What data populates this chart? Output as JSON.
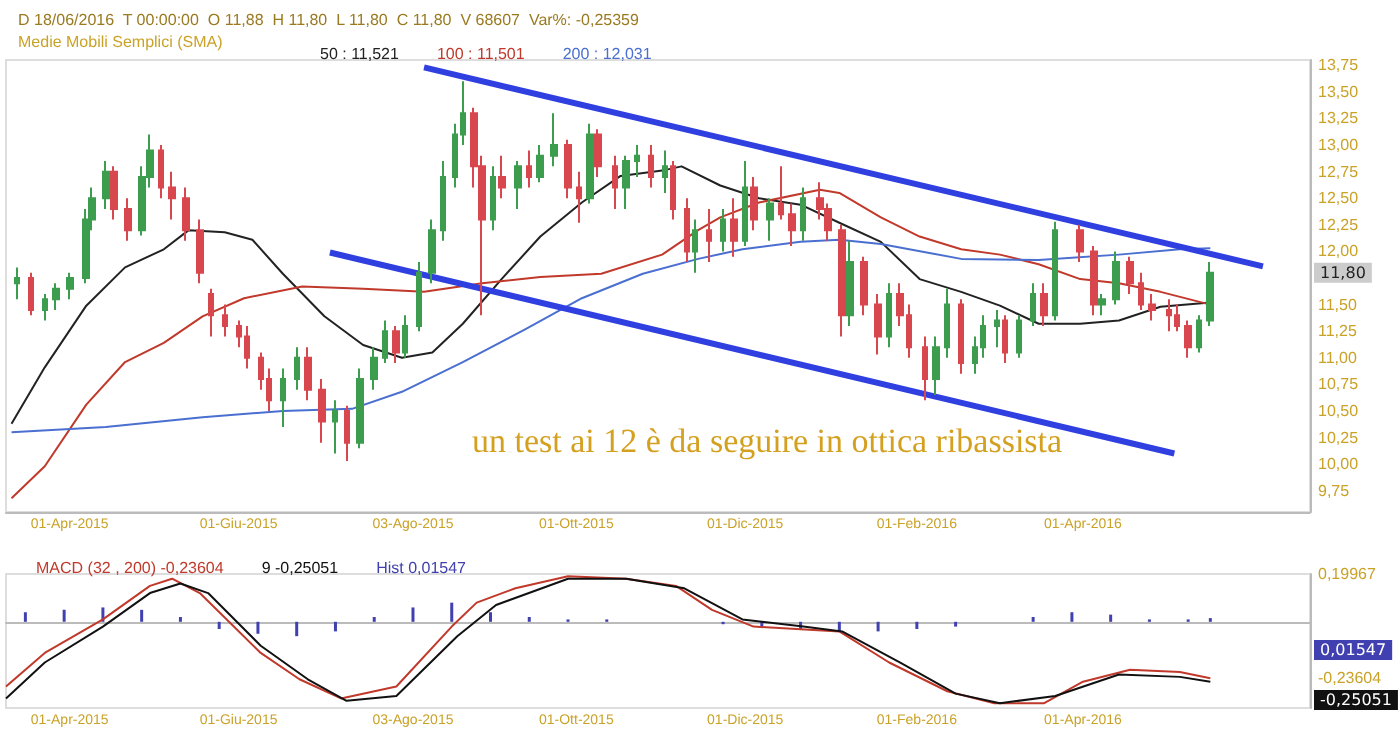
{
  "chart_data": [
    {
      "type": "candlestick",
      "title": "D 18/06/2016  T 00:00:00  O 11,88  H 11,80  L 11,80  C 11,80  V 68607  Var%: -0,25359",
      "subtitle": "Medie Mobili Semplici (SMA)",
      "annotations": [
        "un test ai 12 è da seguire in ottica ribassista",
        "11,80"
      ],
      "x": [
        "2015-03-13",
        "2015-03-18",
        "2015-03-23",
        "2015-03-27",
        "2015-04-01",
        "2015-04-07",
        "2015-04-09",
        "2015-04-14",
        "2015-04-17",
        "2015-04-22",
        "2015-04-27",
        "2015-04-30",
        "2015-05-04",
        "2015-05-08",
        "2015-05-13",
        "2015-05-18",
        "2015-05-22",
        "2015-05-27",
        "2015-06-01",
        "2015-06-04",
        "2015-06-09",
        "2015-06-12",
        "2015-06-17",
        "2015-06-22",
        "2015-06-26",
        "2015-07-01",
        "2015-07-06",
        "2015-07-10",
        "2015-07-15",
        "2015-07-20",
        "2015-07-24",
        "2015-07-28",
        "2015-07-31",
        "2015-08-05",
        "2015-08-10",
        "2015-08-14",
        "2015-08-18",
        "2015-08-21",
        "2015-08-25",
        "2015-08-28",
        "2015-09-01",
        "2015-09-04",
        "2015-09-10",
        "2015-09-14",
        "2015-09-18",
        "2015-09-23",
        "2015-09-28",
        "2015-10-02",
        "2015-10-06",
        "2015-10-09",
        "2015-10-15",
        "2015-10-19",
        "2015-10-23",
        "2015-10-28",
        "2015-11-02",
        "2015-11-05",
        "2015-11-10",
        "2015-11-13",
        "2015-11-18",
        "2015-11-23",
        "2015-11-27",
        "2015-12-01",
        "2015-12-04",
        "2015-12-10",
        "2015-12-14",
        "2015-12-18",
        "2015-12-22",
        "2015-12-28",
        "2015-12-31",
        "2016-01-05",
        "2016-01-08",
        "2016-01-13",
        "2016-01-18",
        "2016-01-22",
        "2016-01-26",
        "2016-01-29",
        "2016-02-04",
        "2016-02-08",
        "2016-02-12",
        "2016-02-17",
        "2016-02-22",
        "2016-02-25",
        "2016-03-01",
        "2016-03-04",
        "2016-03-09",
        "2016-03-14",
        "2016-03-18",
        "2016-03-22",
        "2016-03-31",
        "2016-04-05",
        "2016-04-08",
        "2016-04-13",
        "2016-04-18",
        "2016-04-22",
        "2016-04-26",
        "2016-05-02",
        "2016-05-05",
        "2016-05-09",
        "2016-05-13",
        "2016-05-17"
      ],
      "ohlc": [
        [
          11.7,
          11.85,
          11.55,
          11.75
        ],
        [
          11.75,
          11.8,
          11.4,
          11.45
        ],
        [
          11.45,
          11.6,
          11.35,
          11.55
        ],
        [
          11.55,
          11.7,
          11.45,
          11.65
        ],
        [
          11.65,
          11.8,
          11.55,
          11.75
        ],
        [
          11.75,
          12.4,
          11.7,
          12.3
        ],
        [
          12.3,
          12.6,
          12.2,
          12.5
        ],
        [
          12.5,
          12.85,
          12.4,
          12.75
        ],
        [
          12.75,
          12.8,
          12.3,
          12.4
        ],
        [
          12.4,
          12.5,
          12.1,
          12.2
        ],
        [
          12.2,
          12.8,
          12.15,
          12.7
        ],
        [
          12.7,
          13.1,
          12.6,
          12.95
        ],
        [
          12.95,
          13.0,
          12.5,
          12.6
        ],
        [
          12.6,
          12.75,
          12.3,
          12.5
        ],
        [
          12.5,
          12.6,
          12.1,
          12.2
        ],
        [
          12.2,
          12.3,
          11.7,
          11.8
        ],
        [
          11.6,
          11.65,
          11.2,
          11.4
        ],
        [
          11.4,
          11.5,
          11.2,
          11.3
        ],
        [
          11.3,
          11.35,
          11.1,
          11.2
        ],
        [
          11.2,
          11.3,
          10.9,
          11.0
        ],
        [
          11.0,
          11.05,
          10.7,
          10.8
        ],
        [
          10.8,
          10.9,
          10.5,
          10.6
        ],
        [
          10.6,
          10.9,
          10.35,
          10.8
        ],
        [
          10.8,
          11.1,
          10.7,
          11.0
        ],
        [
          11.0,
          11.1,
          10.6,
          10.7
        ],
        [
          10.7,
          10.8,
          10.2,
          10.4
        ],
        [
          10.4,
          10.6,
          10.1,
          10.5
        ],
        [
          10.5,
          10.55,
          10.03,
          10.2
        ],
        [
          10.2,
          10.9,
          10.15,
          10.8
        ],
        [
          10.8,
          11.1,
          10.7,
          11.0
        ],
        [
          11.0,
          11.35,
          10.95,
          11.25
        ],
        [
          11.25,
          11.3,
          10.95,
          11.05
        ],
        [
          11.05,
          11.4,
          11.0,
          11.3
        ],
        [
          11.3,
          11.9,
          11.25,
          11.8
        ],
        [
          11.8,
          12.3,
          11.7,
          12.2
        ],
        [
          12.2,
          12.85,
          12.1,
          12.7
        ],
        [
          12.7,
          13.2,
          12.6,
          13.1
        ],
        [
          13.1,
          13.6,
          13.0,
          13.3
        ],
        [
          13.3,
          13.35,
          12.6,
          12.8
        ],
        [
          12.8,
          12.9,
          11.4,
          12.3
        ],
        [
          12.3,
          12.8,
          12.2,
          12.7
        ],
        [
          12.7,
          12.9,
          12.5,
          12.6
        ],
        [
          12.6,
          12.85,
          12.4,
          12.8
        ],
        [
          12.8,
          12.95,
          12.6,
          12.7
        ],
        [
          12.7,
          13.0,
          12.65,
          12.9
        ],
        [
          12.9,
          13.3,
          12.8,
          13.0
        ],
        [
          13.0,
          13.05,
          12.5,
          12.6
        ],
        [
          12.6,
          12.75,
          12.27,
          12.5
        ],
        [
          12.5,
          13.2,
          12.45,
          13.1
        ],
        [
          13.1,
          13.15,
          12.7,
          12.8
        ],
        [
          12.8,
          12.9,
          12.4,
          12.6
        ],
        [
          12.6,
          12.9,
          12.4,
          12.85
        ],
        [
          12.85,
          13.0,
          12.7,
          12.9
        ],
        [
          12.9,
          13.0,
          12.6,
          12.7
        ],
        [
          12.7,
          12.95,
          12.55,
          12.8
        ],
        [
          12.8,
          12.85,
          12.3,
          12.4
        ],
        [
          12.4,
          12.5,
          11.9,
          12.0
        ],
        [
          12.0,
          12.3,
          11.8,
          12.2
        ],
        [
          12.2,
          12.4,
          11.9,
          12.1
        ],
        [
          12.1,
          12.4,
          12.0,
          12.3
        ],
        [
          12.3,
          12.5,
          11.95,
          12.1
        ],
        [
          12.1,
          12.85,
          12.05,
          12.6
        ],
        [
          12.6,
          12.7,
          12.2,
          12.3
        ],
        [
          12.3,
          12.5,
          12.1,
          12.45
        ],
        [
          12.45,
          12.8,
          12.3,
          12.35
        ],
        [
          12.35,
          12.45,
          12.05,
          12.2
        ],
        [
          12.2,
          12.6,
          12.1,
          12.5
        ],
        [
          12.5,
          12.65,
          12.3,
          12.4
        ],
        [
          12.4,
          12.45,
          12.1,
          12.2
        ],
        [
          12.2,
          12.25,
          11.2,
          11.4
        ],
        [
          11.4,
          12.1,
          11.3,
          11.9
        ],
        [
          11.9,
          11.95,
          11.4,
          11.5
        ],
        [
          11.5,
          11.6,
          11.03,
          11.2
        ],
        [
          11.2,
          11.7,
          11.1,
          11.6
        ],
        [
          11.6,
          11.7,
          11.3,
          11.4
        ],
        [
          11.4,
          11.5,
          11.0,
          11.1
        ],
        [
          11.1,
          11.2,
          10.6,
          10.8
        ],
        [
          10.8,
          11.2,
          10.65,
          11.1
        ],
        [
          11.1,
          11.65,
          11.0,
          11.5
        ],
        [
          11.5,
          11.55,
          10.85,
          10.95
        ],
        [
          10.95,
          11.2,
          10.85,
          11.1
        ],
        [
          11.1,
          11.4,
          11.0,
          11.3
        ],
        [
          11.3,
          11.45,
          11.1,
          11.35
        ],
        [
          11.35,
          11.4,
          10.95,
          11.05
        ],
        [
          11.05,
          11.4,
          11.0,
          11.35
        ],
        [
          11.35,
          11.7,
          11.3,
          11.6
        ],
        [
          11.6,
          11.7,
          11.3,
          11.4
        ],
        [
          11.4,
          12.28,
          11.35,
          12.2
        ],
        [
          12.2,
          12.25,
          11.9,
          12.0
        ],
        [
          12.0,
          12.05,
          11.4,
          11.5
        ],
        [
          11.5,
          11.6,
          11.4,
          11.55
        ],
        [
          11.55,
          12.0,
          11.5,
          11.9
        ],
        [
          11.9,
          11.95,
          11.6,
          11.7
        ],
        [
          11.7,
          11.8,
          11.45,
          11.5
        ],
        [
          11.5,
          11.6,
          11.35,
          11.45
        ],
        [
          11.45,
          11.55,
          11.25,
          11.4
        ],
        [
          11.4,
          11.5,
          11.25,
          11.3
        ],
        [
          11.3,
          11.35,
          11.0,
          11.1
        ],
        [
          11.1,
          11.4,
          11.05,
          11.35
        ],
        [
          11.35,
          11.9,
          11.3,
          11.8
        ]
      ],
      "series": [
        {
          "type": "line",
          "name": "50 : 11,521",
          "color": "#222222",
          "x": [
            "2015-03-11",
            "2015-03-23",
            "2015-04-07",
            "2015-04-21",
            "2015-05-05",
            "2015-05-14",
            "2015-05-27",
            "2015-06-06",
            "2015-06-17",
            "2015-07-02",
            "2015-07-16",
            "2015-07-30",
            "2015-08-10",
            "2015-08-21",
            "2015-09-04",
            "2015-09-18",
            "2015-10-03",
            "2015-10-17",
            "2015-11-01",
            "2015-11-08",
            "2015-11-22",
            "2015-12-06",
            "2015-12-21",
            "2016-01-04",
            "2016-01-19",
            "2016-02-02",
            "2016-02-17",
            "2016-03-02",
            "2016-03-16",
            "2016-03-31",
            "2016-04-14",
            "2016-04-29",
            "2016-05-17"
          ],
          "values": [
            10.38,
            10.91,
            11.49,
            11.85,
            12.02,
            12.2,
            12.18,
            12.11,
            11.79,
            11.39,
            11.12,
            11.0,
            11.05,
            11.32,
            11.74,
            12.14,
            12.46,
            12.71,
            12.76,
            12.8,
            12.62,
            12.5,
            12.44,
            12.27,
            12.09,
            11.74,
            11.62,
            11.49,
            11.32,
            11.32,
            11.35,
            11.48,
            11.52
          ]
        },
        {
          "type": "line",
          "name": "100 : 11,501",
          "color": "#c0392b",
          "x": [
            "2015-03-11",
            "2015-03-23",
            "2015-04-07",
            "2015-04-21",
            "2015-05-05",
            "2015-05-19",
            "2015-06-03",
            "2015-06-24",
            "2015-07-16",
            "2015-08-07",
            "2015-08-28",
            "2015-09-18",
            "2015-10-10",
            "2015-11-01",
            "2015-11-14",
            "2015-11-22",
            "2015-12-06",
            "2015-12-28",
            "2016-01-04",
            "2016-01-19",
            "2016-02-02",
            "2016-02-17",
            "2016-03-02",
            "2016-03-16",
            "2016-03-31",
            "2016-04-14",
            "2016-04-29",
            "2016-05-17"
          ],
          "values": [
            9.68,
            9.98,
            10.56,
            10.96,
            11.14,
            11.39,
            11.56,
            11.67,
            11.65,
            11.62,
            11.7,
            11.76,
            11.79,
            11.97,
            12.2,
            12.32,
            12.46,
            12.58,
            12.55,
            12.32,
            12.14,
            12.02,
            11.97,
            11.88,
            11.74,
            11.7,
            11.62,
            11.5
          ]
        },
        {
          "type": "line",
          "name": "200 : 12,031",
          "color": "#4a6fd0",
          "x": [
            "2015-03-11",
            "2015-04-14",
            "2015-05-19",
            "2015-06-17",
            "2015-07-12",
            "2015-07-30",
            "2015-08-21",
            "2015-09-12",
            "2015-10-03",
            "2015-10-25",
            "2015-11-14",
            "2015-11-30",
            "2015-12-21",
            "2016-01-04",
            "2016-01-19",
            "2016-02-17",
            "2016-03-16",
            "2016-04-14",
            "2016-05-06",
            "2016-05-17"
          ],
          "values": [
            10.3,
            10.35,
            10.44,
            10.5,
            10.52,
            10.68,
            10.96,
            11.26,
            11.56,
            11.79,
            11.93,
            12.02,
            12.09,
            12.11,
            12.07,
            11.93,
            11.92,
            11.97,
            12.02,
            12.03
          ]
        },
        {
          "type": "line",
          "color": "#2f3fe0",
          "x": [
            "2015-08-07",
            "2016-06-05"
          ],
          "values": [
            13.73,
            11.86
          ]
        },
        {
          "type": "line",
          "color": "#2f3fe0",
          "x": [
            "2015-07-04",
            "2016-05-04"
          ],
          "values": [
            11.99,
            10.1
          ]
        }
      ],
      "xlim": [
        "2015-03-09",
        "2016-06-22"
      ],
      "xticks": [
        {
          "value": "2015-04-01",
          "label": "01-Apr-2015"
        },
        {
          "value": "2015-06-01",
          "label": "01-Giu-2015"
        },
        {
          "value": "2015-08-03",
          "label": "03-Ago-2015"
        },
        {
          "value": "2015-10-01",
          "label": "01-Ott-2015"
        },
        {
          "value": "2015-12-01",
          "label": "01-Dic-2015"
        },
        {
          "value": "2016-02-01",
          "label": "01-Feb-2016"
        },
        {
          "value": "2016-04-01",
          "label": "01-Apr-2016"
        }
      ],
      "ylim": [
        9.55,
        13.8
      ],
      "yticks": [
        {
          "value": 9.75,
          "label": "9,75"
        },
        {
          "value": 10,
          "label": "10,00"
        },
        {
          "value": 10.25,
          "label": "10,25"
        },
        {
          "value": 10.5,
          "label": "10,50"
        },
        {
          "value": 10.75,
          "label": "10,75"
        },
        {
          "value": 11,
          "label": "11,00"
        },
        {
          "value": 11.25,
          "label": "11,25"
        },
        {
          "value": 11.5,
          "label": "11,50"
        },
        {
          "value": 12,
          "label": "12,00"
        },
        {
          "value": 12.25,
          "label": "12,25"
        },
        {
          "value": 12.5,
          "label": "12,50"
        },
        {
          "value": 12.75,
          "label": "12,75"
        },
        {
          "value": 13,
          "label": "13,00"
        },
        {
          "value": 13.25,
          "label": "13,25"
        },
        {
          "value": 13.5,
          "label": "13,50"
        },
        {
          "value": 13.75,
          "label": "13,75"
        }
      ],
      "legend": "top left",
      "marker": "none"
    },
    {
      "type": "line",
      "annotations": [
        "0,01547",
        "-0,25051"
      ],
      "series": [
        {
          "type": "line",
          "name": "MACD (32 , 200) -0,23604",
          "color": "#c0392b",
          "x": [
            "2015-03-09",
            "2015-03-23",
            "2015-04-13",
            "2015-04-30",
            "2015-05-08",
            "2015-05-18",
            "2015-06-09",
            "2015-06-23",
            "2015-07-08",
            "2015-07-28",
            "2015-08-17",
            "2015-08-26",
            "2015-09-09",
            "2015-09-28",
            "2015-10-19",
            "2015-11-06",
            "2015-11-19",
            "2015-12-04",
            "2016-01-04",
            "2016-01-22",
            "2016-02-12",
            "2016-02-29",
            "2016-03-18",
            "2016-04-01",
            "2016-04-18",
            "2016-05-06",
            "2016-05-17"
          ],
          "values": [
            -0.27,
            -0.13,
            0.01,
            0.15,
            0.18,
            0.12,
            -0.13,
            -0.24,
            -0.32,
            -0.27,
            -0.02,
            0.08,
            0.14,
            0.19,
            0.18,
            0.15,
            0.05,
            -0.02,
            -0.04,
            -0.17,
            -0.29,
            -0.34,
            -0.34,
            -0.25,
            -0.2,
            -0.21,
            -0.23604
          ]
        },
        {
          "type": "line",
          "name": "9 -0,25051",
          "color": "#111111",
          "x": [
            "2015-03-09",
            "2015-03-23",
            "2015-04-13",
            "2015-04-30",
            "2015-05-11",
            "2015-05-21",
            "2015-06-09",
            "2015-06-26",
            "2015-07-10",
            "2015-07-28",
            "2015-08-19",
            "2015-09-02",
            "2015-09-28",
            "2015-10-19",
            "2015-11-09",
            "2015-11-30",
            "2015-12-22",
            "2016-01-05",
            "2016-01-26",
            "2016-02-15",
            "2016-03-02",
            "2016-03-22",
            "2016-04-14",
            "2016-05-06",
            "2016-05-17"
          ],
          "values": [
            -0.32,
            -0.17,
            -0.02,
            0.12,
            0.16,
            0.12,
            -0.1,
            -0.24,
            -0.33,
            -0.31,
            -0.06,
            0.07,
            0.18,
            0.18,
            0.14,
            0.01,
            -0.02,
            -0.04,
            -0.17,
            -0.3,
            -0.34,
            -0.31,
            -0.22,
            -0.23,
            -0.25051
          ]
        },
        {
          "type": "bar",
          "name": "Hist 0,01547",
          "color": "#4040b0",
          "x": [
            "2015-03-16",
            "2015-03-30",
            "2015-04-13",
            "2015-04-27",
            "2015-05-11",
            "2015-05-25",
            "2015-06-08",
            "2015-06-22",
            "2015-07-06",
            "2015-07-20",
            "2015-08-03",
            "2015-08-17",
            "2015-08-31",
            "2015-09-14",
            "2015-09-28",
            "2015-10-12",
            "2015-10-26",
            "2015-11-09",
            "2015-11-23",
            "2015-12-07",
            "2015-12-21",
            "2016-01-04",
            "2016-01-18",
            "2016-02-01",
            "2016-02-15",
            "2016-02-29",
            "2016-03-14",
            "2016-03-28",
            "2016-04-11",
            "2016-04-25",
            "2016-05-09",
            "2016-05-17"
          ],
          "values": [
            0.04,
            0.05,
            0.06,
            0.05,
            0.02,
            -0.03,
            -0.05,
            -0.06,
            -0.04,
            0.02,
            0.06,
            0.08,
            0.04,
            0.02,
            0.01,
            0.01,
            0.0,
            0.0,
            -0.01,
            -0.02,
            -0.03,
            -0.04,
            -0.04,
            -0.03,
            -0.02,
            0.0,
            0.02,
            0.04,
            0.03,
            0.01,
            0.01,
            0.01547
          ]
        }
      ],
      "xlim": [
        "2015-03-09",
        "2016-06-22"
      ],
      "xticks": [
        {
          "value": "2015-04-01",
          "label": "01-Apr-2015"
        },
        {
          "value": "2015-06-01",
          "label": "01-Giu-2015"
        },
        {
          "value": "2015-08-03",
          "label": "03-Ago-2015"
        },
        {
          "value": "2015-10-01",
          "label": "01-Ott-2015"
        },
        {
          "value": "2015-12-01",
          "label": "01-Dic-2015"
        },
        {
          "value": "2016-02-01",
          "label": "01-Feb-2016"
        },
        {
          "value": "2016-04-01",
          "label": "01-Apr-2016"
        }
      ],
      "ylim": [
        -0.36,
        0.19967
      ],
      "yticks": [
        {
          "value": 0.19967,
          "label": "0,19967"
        },
        {
          "value": -0.23604,
          "label": "-0,23604"
        }
      ],
      "legend": "top left",
      "marker": "none"
    }
  ]
}
